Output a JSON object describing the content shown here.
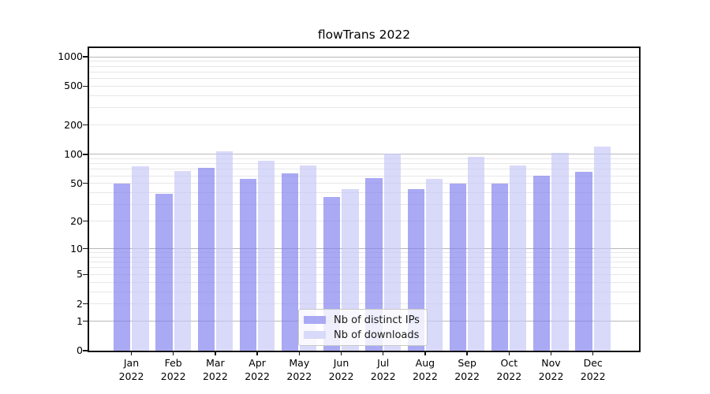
{
  "title": "flowTrans 2022",
  "colors": {
    "series1_fill": "rgba(124,124,238,0.66)",
    "series1_legend": "#a9a9f4",
    "series2_fill": "rgba(198,198,247,0.66)",
    "series2_legend": "#d9d9f9",
    "grid_major": "#b8b8b8",
    "grid_minor": "#e7e7e7",
    "spine": "#111111"
  },
  "chart_data": {
    "type": "bar",
    "title": "flowTrans 2022",
    "categories": [
      "Jan 2022",
      "Feb 2022",
      "Mar 2022",
      "Apr 2022",
      "May 2022",
      "Jun 2022",
      "Jul 2022",
      "Aug 2022",
      "Sep 2022",
      "Oct 2022",
      "Nov 2022",
      "Dec 2022"
    ],
    "series": [
      {
        "name": "Nb of distinct IPs",
        "values": [
          50,
          39,
          72,
          56,
          64,
          36,
          57,
          44,
          50,
          50,
          60,
          66
        ]
      },
      {
        "name": "Nb of downloads",
        "values": [
          75,
          67,
          108,
          86,
          77,
          44,
          102,
          56,
          94,
          77,
          103,
          120
        ]
      }
    ],
    "xlabel": "",
    "ylabel": "",
    "y_scale": "log1p",
    "y_ticks": [
      0,
      1,
      2,
      5,
      10,
      20,
      50,
      100,
      200,
      500,
      1000
    ],
    "ylim": [
      0,
      1230
    ],
    "grid": true,
    "legend_position": "lower center"
  }
}
